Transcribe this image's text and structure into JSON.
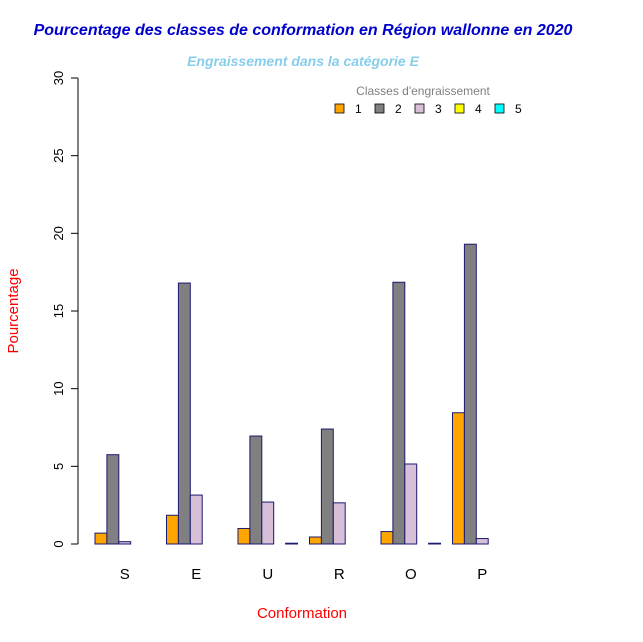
{
  "chart_data": {
    "type": "bar",
    "title": "Pourcentage des classes de conformation en Région wallonne en 2020",
    "subtitle": "Engraissement dans la catégorie E",
    "xlabel": "Conformation",
    "ylabel": "Pourcentage",
    "ylim": [
      0,
      30
    ],
    "yticks": [
      0,
      5,
      10,
      15,
      20,
      25,
      30
    ],
    "categories": [
      "S",
      "E",
      "U",
      "R",
      "O",
      "P"
    ],
    "legend_title": "Classes d'engraissement",
    "legend_position": "top-right",
    "series": [
      {
        "name": "1",
        "color": "#FFA500",
        "values": [
          0.7,
          1.85,
          1.0,
          0.45,
          0.8,
          8.45
        ]
      },
      {
        "name": "2",
        "color": "#808080",
        "values": [
          5.75,
          16.8,
          6.95,
          7.4,
          16.85,
          19.3
        ]
      },
      {
        "name": "3",
        "color": "#D8BFD8",
        "values": [
          0.15,
          3.15,
          2.7,
          2.65,
          5.15,
          0.35
        ]
      },
      {
        "name": "4",
        "color": "#FFFF00",
        "values": [
          0,
          0,
          0,
          0,
          0,
          0
        ]
      },
      {
        "name": "5",
        "color": "#00FFFF",
        "values": [
          0,
          0,
          0.05,
          0,
          0.05,
          0
        ]
      }
    ],
    "colors": {
      "title": "#0000CD",
      "subtitle": "#87CEEB",
      "axis_title": "#FF0000",
      "legend_title": "#808080",
      "bar_border": "#191970"
    }
  }
}
